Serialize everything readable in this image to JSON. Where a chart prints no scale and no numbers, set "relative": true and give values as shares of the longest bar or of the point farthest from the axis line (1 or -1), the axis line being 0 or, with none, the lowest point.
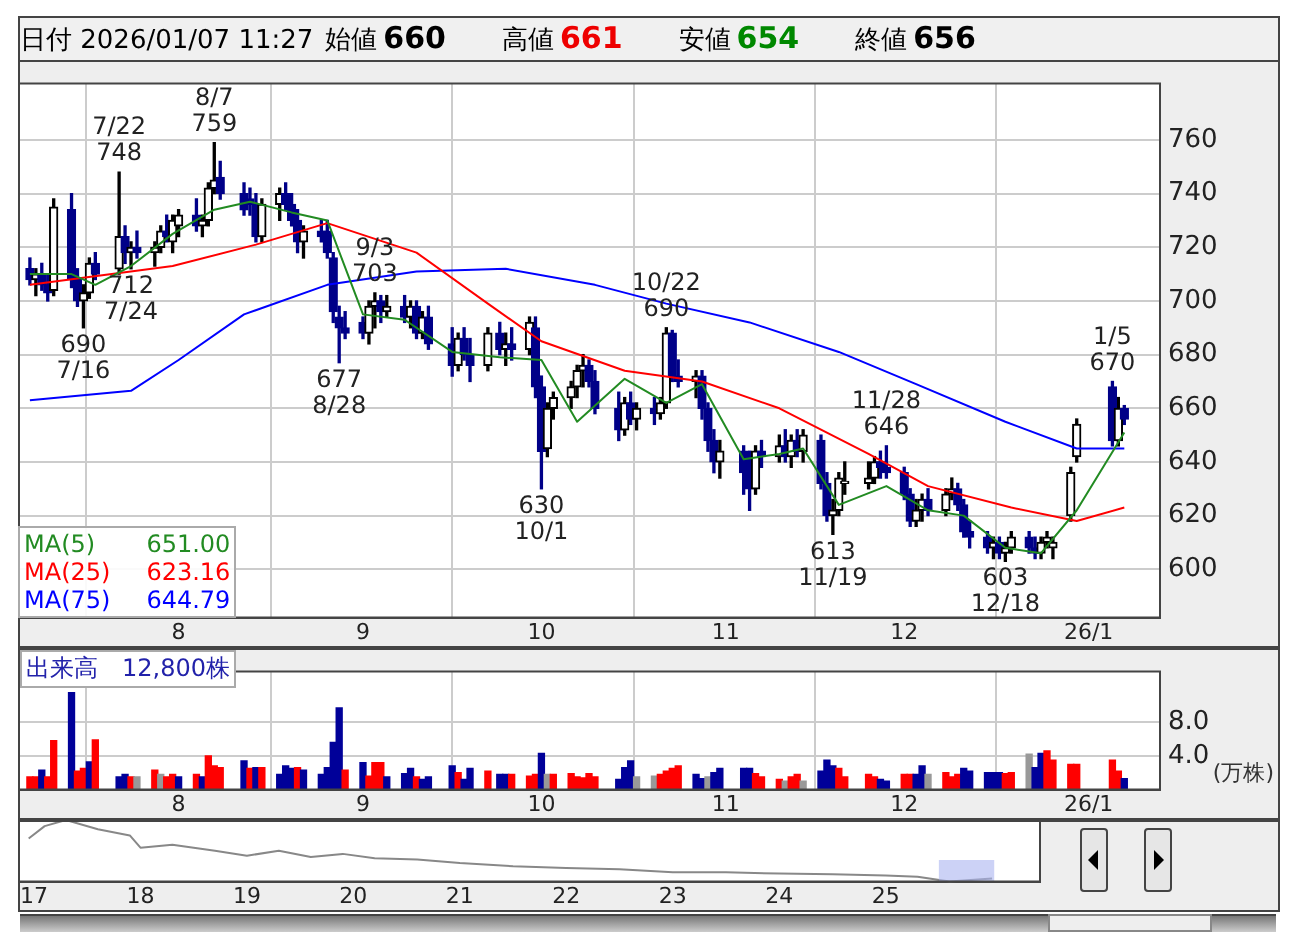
{
  "chart_data": [
    {
      "type": "candlestick",
      "title": "日付 2026/01/07 11:27",
      "subtitle": "始値 660 高値 661 安値 654 終値 656",
      "x": [
        "2025-07-07",
        "2025-07-08",
        "2025-07-09",
        "2025-07-10",
        "2025-07-11",
        "2025-07-14",
        "2025-07-15",
        "2025-07-16",
        "2025-07-17",
        "2025-07-18",
        "2025-07-22",
        "2025-07-23",
        "2025-07-24",
        "2025-07-25",
        "2025-07-28",
        "2025-07-29",
        "2025-07-30",
        "2025-07-31",
        "2025-08-01",
        "2025-08-04",
        "2025-08-05",
        "2025-08-06",
        "2025-08-07",
        "2025-08-08",
        "2025-08-12",
        "2025-08-13",
        "2025-08-14",
        "2025-08-15",
        "2025-08-18",
        "2025-08-19",
        "2025-08-20",
        "2025-08-21",
        "2025-08-22",
        "2025-08-25",
        "2025-08-26",
        "2025-08-27",
        "2025-08-28",
        "2025-08-29",
        "2025-09-01",
        "2025-09-02",
        "2025-09-03",
        "2025-09-04",
        "2025-09-05",
        "2025-09-08",
        "2025-09-09",
        "2025-09-10",
        "2025-09-11",
        "2025-09-12",
        "2025-09-16",
        "2025-09-17",
        "2025-09-18",
        "2025-09-19",
        "2025-09-22",
        "2025-09-24",
        "2025-09-25",
        "2025-09-26",
        "2025-09-29",
        "2025-09-30",
        "2025-10-01",
        "2025-10-02",
        "2025-10-03",
        "2025-10-06",
        "2025-10-07",
        "2025-10-08",
        "2025-10-09",
        "2025-10-10",
        "2025-10-14",
        "2025-10-15",
        "2025-10-16",
        "2025-10-17",
        "2025-10-20",
        "2025-10-21",
        "2025-10-22",
        "2025-10-23",
        "2025-10-24",
        "2025-10-27",
        "2025-10-28",
        "2025-10-29",
        "2025-10-30",
        "2025-10-31",
        "2025-11-04",
        "2025-11-05",
        "2025-11-06",
        "2025-11-07",
        "2025-11-10",
        "2025-11-11",
        "2025-11-12",
        "2025-11-13",
        "2025-11-14",
        "2025-11-17",
        "2025-11-18",
        "2025-11-19",
        "2025-11-20",
        "2025-11-21",
        "2025-11-25",
        "2025-11-26",
        "2025-11-27",
        "2025-11-28",
        "2025-12-01",
        "2025-12-02",
        "2025-12-03",
        "2025-12-04",
        "2025-12-05",
        "2025-12-08",
        "2025-12-09",
        "2025-12-10",
        "2025-12-11",
        "2025-12-12",
        "2025-12-15",
        "2025-12-16",
        "2025-12-17",
        "2025-12-18",
        "2025-12-19",
        "2025-12-22",
        "2025-12-23",
        "2025-12-24",
        "2025-12-25",
        "2025-12-26",
        "2025-12-29",
        "2025-12-30",
        "2026-01-05",
        "2026-01-06",
        "2026-01-07"
      ],
      "ohlc": [
        [
          712,
          716,
          706,
          708
        ],
        [
          708,
          712,
          702,
          710
        ],
        [
          710,
          714,
          704,
          706
        ],
        [
          706,
          710,
          700,
          703
        ],
        [
          704,
          738,
          702,
          735
        ],
        [
          734,
          740,
          705,
          708
        ],
        [
          708,
          712,
          698,
          700
        ],
        [
          700,
          706,
          690,
          703
        ],
        [
          703,
          716,
          701,
          714
        ],
        [
          714,
          718,
          708,
          710
        ],
        [
          712,
          748,
          710,
          724
        ],
        [
          724,
          728,
          714,
          718
        ],
        [
          718,
          722,
          712,
          720
        ],
        [
          720,
          726,
          716,
          718
        ],
        [
          718,
          722,
          713,
          720
        ],
        [
          720,
          728,
          718,
          726
        ],
        [
          726,
          732,
          722,
          724
        ],
        [
          722,
          732,
          718,
          730
        ],
        [
          728,
          734,
          724,
          732
        ],
        [
          732,
          738,
          726,
          728
        ],
        [
          728,
          732,
          724,
          730
        ],
        [
          730,
          744,
          728,
          742
        ],
        [
          742,
          759,
          740,
          745
        ],
        [
          746,
          752,
          738,
          740
        ],
        [
          740,
          744,
          732,
          734
        ],
        [
          738,
          742,
          732,
          736
        ],
        [
          736,
          740,
          722,
          724
        ],
        [
          724,
          738,
          722,
          736
        ],
        [
          736,
          742,
          730,
          740
        ],
        [
          740,
          744,
          734,
          736
        ],
        [
          736,
          740,
          728,
          730
        ],
        [
          730,
          734,
          718,
          722
        ],
        [
          722,
          728,
          716,
          726
        ],
        [
          726,
          730,
          722,
          724
        ],
        [
          726,
          730,
          716,
          718
        ],
        [
          716,
          718,
          692,
          696
        ],
        [
          694,
          698,
          677,
          690
        ],
        [
          690,
          696,
          686,
          688
        ],
        [
          692,
          694,
          686,
          688
        ],
        [
          688,
          700,
          684,
          698
        ],
        [
          698,
          703,
          690,
          700
        ],
        [
          700,
          702,
          692,
          696
        ],
        [
          696,
          702,
          694,
          698
        ],
        [
          698,
          702,
          692,
          694
        ],
        [
          694,
          700,
          690,
          698
        ],
        [
          698,
          700,
          686,
          688
        ],
        [
          688,
          696,
          686,
          694
        ],
        [
          694,
          698,
          682,
          684
        ],
        [
          684,
          690,
          672,
          676
        ],
        [
          676,
          688,
          674,
          686
        ],
        [
          686,
          690,
          678,
          680
        ],
        [
          680,
          686,
          670,
          676
        ],
        [
          676,
          690,
          674,
          688
        ],
        [
          688,
          692,
          680,
          682
        ],
        [
          682,
          688,
          676,
          684
        ],
        [
          684,
          690,
          678,
          682
        ],
        [
          682,
          694,
          680,
          692
        ],
        [
          690,
          694,
          664,
          668
        ],
        [
          668,
          672,
          630,
          644
        ],
        [
          645,
          662,
          642,
          660
        ],
        [
          660,
          666,
          656,
          664
        ],
        [
          664,
          670,
          660,
          668
        ],
        [
          668,
          676,
          664,
          674
        ],
        [
          674,
          680,
          668,
          676
        ],
        [
          676,
          678,
          668,
          670
        ],
        [
          670,
          674,
          658,
          660
        ],
        [
          660,
          666,
          648,
          652
        ],
        [
          652,
          664,
          650,
          662
        ],
        [
          662,
          666,
          654,
          656
        ],
        [
          656,
          662,
          652,
          660
        ],
        [
          660,
          664,
          654,
          658
        ],
        [
          658,
          664,
          656,
          662
        ],
        [
          662,
          690,
          660,
          688
        ],
        [
          688,
          689,
          670,
          672
        ],
        [
          672,
          678,
          668,
          670
        ],
        [
          670,
          674,
          664,
          672
        ],
        [
          672,
          674,
          656,
          660
        ],
        [
          660,
          662,
          644,
          648
        ],
        [
          648,
          652,
          636,
          640
        ],
        [
          640,
          648,
          634,
          644
        ],
        [
          644,
          646,
          628,
          636
        ],
        [
          636,
          644,
          622,
          630
        ],
        [
          630,
          646,
          628,
          644
        ],
        [
          644,
          648,
          638,
          642
        ],
        [
          642,
          650,
          640,
          646
        ],
        [
          646,
          652,
          640,
          642
        ],
        [
          642,
          650,
          638,
          648
        ],
        [
          648,
          652,
          642,
          644
        ],
        [
          644,
          652,
          640,
          650
        ],
        [
          648,
          650,
          630,
          632
        ],
        [
          632,
          636,
          618,
          620
        ],
        [
          620,
          626,
          613,
          622
        ],
        [
          622,
          636,
          620,
          634
        ],
        [
          632,
          640,
          628,
          632
        ],
        [
          632,
          640,
          630,
          634
        ],
        [
          634,
          642,
          632,
          640
        ],
        [
          640,
          644,
          634,
          638
        ],
        [
          638,
          646,
          634,
          636
        ],
        [
          636,
          638,
          626,
          628
        ],
        [
          628,
          630,
          616,
          618
        ],
        [
          618,
          626,
          616,
          622
        ],
        [
          622,
          628,
          618,
          626
        ],
        [
          626,
          630,
          620,
          622
        ],
        [
          622,
          630,
          620,
          628
        ],
        [
          628,
          634,
          626,
          630
        ],
        [
          630,
          632,
          622,
          624
        ],
        [
          624,
          626,
          612,
          614
        ],
        [
          614,
          618,
          608,
          612
        ],
        [
          612,
          614,
          606,
          608
        ],
        [
          608,
          612,
          604,
          610
        ],
        [
          610,
          612,
          604,
          606
        ],
        [
          606,
          610,
          603,
          608
        ],
        [
          608,
          614,
          606,
          612
        ],
        [
          612,
          614,
          606,
          608
        ],
        [
          608,
          612,
          604,
          606
        ],
        [
          606,
          612,
          604,
          610
        ],
        [
          610,
          614,
          608,
          612
        ],
        [
          608,
          612,
          604,
          610
        ],
        [
          620,
          638,
          618,
          636
        ],
        [
          642,
          656,
          640,
          654
        ],
        [
          668,
          670,
          646,
          648
        ],
        [
          648,
          664,
          646,
          660
        ],
        [
          660,
          661,
          654,
          656
        ]
      ],
      "series": [
        {
          "name": "MA(5)",
          "type": "line",
          "color": "#228b22",
          "x": [
            "2025-07-07",
            "2025-07-14",
            "2025-07-18",
            "2025-07-24",
            "2025-07-31",
            "2025-08-07",
            "2025-08-13",
            "2025-08-20",
            "2025-08-26",
            "2025-09-01",
            "2025-09-08",
            "2025-09-16",
            "2025-09-24",
            "2025-10-01",
            "2025-10-07",
            "2025-10-15",
            "2025-10-22",
            "2025-10-28",
            "2025-11-04",
            "2025-11-10",
            "2025-11-14",
            "2025-11-20",
            "2025-11-28",
            "2025-12-05",
            "2025-12-11",
            "2025-12-18",
            "2025-12-24",
            "2025-12-30",
            "2026-01-07"
          ],
          "values": [
            710,
            710,
            706,
            713,
            725,
            734,
            737,
            733,
            730,
            695,
            693,
            681,
            679,
            678,
            655,
            671,
            662,
            669,
            641,
            643,
            645,
            624,
            631,
            622,
            620,
            608,
            606,
            622,
            651
          ]
        },
        {
          "name": "MA(25)",
          "type": "line",
          "color": "#ff0000",
          "x": [
            "2025-07-07",
            "2025-07-31",
            "2025-08-14",
            "2025-08-26",
            "2025-09-10",
            "2025-09-22",
            "2025-10-01",
            "2025-10-15",
            "2025-10-28",
            "2025-11-10",
            "2025-11-25",
            "2025-12-05",
            "2025-12-19",
            "2025-12-30",
            "2026-01-07"
          ],
          "values": [
            706,
            713,
            721,
            729,
            718,
            699,
            685,
            674,
            670,
            660,
            643,
            631,
            623,
            618,
            623
          ]
        },
        {
          "name": "MA(75)",
          "type": "line",
          "color": "#0000ff",
          "x": [
            "2025-07-07",
            "2025-07-24",
            "2025-08-01",
            "2025-08-12",
            "2025-08-26",
            "2025-09-10",
            "2025-09-25",
            "2025-10-10",
            "2025-10-22",
            "2025-11-05",
            "2025-11-20",
            "2025-12-03",
            "2025-12-18",
            "2025-12-30",
            "2026-01-07"
          ],
          "values": [
            663,
            666.5,
            678,
            695,
            706,
            711,
            712,
            706,
            699,
            692,
            681,
            669,
            655,
            645,
            645
          ]
        }
      ],
      "annotations": [
        "651.00",
        "623.16",
        "644.79",
        {
          "text": "7/22\n748",
          "x": "2025-07-22",
          "y": 748
        },
        {
          "text": "8/7\n759",
          "x": "2025-08-07",
          "y": 759
        },
        {
          "text": "9/3\n703",
          "x": "2025-09-03",
          "y": 703
        },
        {
          "text": "10/22\n690",
          "x": "2025-10-22",
          "y": 690
        },
        {
          "text": "11/28\n646",
          "x": "2025-11-28",
          "y": 646
        },
        {
          "text": "1/5\n670",
          "x": "2026-01-05",
          "y": 670
        },
        {
          "text": "690\n7/16",
          "x": "2025-07-16",
          "y": 690
        },
        {
          "text": "712\n7/24",
          "x": "2025-07-24",
          "y": 712
        },
        {
          "text": "677\n8/28",
          "x": "2025-08-28",
          "y": 677
        },
        {
          "text": "630\n10/1",
          "x": "2025-10-01",
          "y": 630
        },
        {
          "text": "613\n11/19",
          "x": "2025-11-19",
          "y": 613
        },
        {
          "text": "603\n12/18",
          "x": "2025-12-18",
          "y": 603
        }
      ],
      "xlim": [
        "2025-07-05",
        "2026-01-13"
      ],
      "xticks": [
        {
          "value": "2025-08-01",
          "label": "8"
        },
        {
          "value": "2025-09-01",
          "label": "9"
        },
        {
          "value": "2025-10-01",
          "label": "10"
        },
        {
          "value": "2025-11-01",
          "label": "11"
        },
        {
          "value": "2025-12-01",
          "label": "12"
        },
        {
          "value": "2026-01-01",
          "label": "26/1"
        }
      ],
      "ylim": [
        582,
        781
      ],
      "yticks": [
        600,
        620,
        640,
        660,
        680,
        700,
        720,
        740,
        760
      ],
      "grid": true,
      "legend": "bottom left",
      "marker": "none"
    },
    {
      "type": "bar",
      "title": "出来高　12,800株",
      "ylabel": "(万株)",
      "x": [
        "2025-07-07",
        "2025-07-08",
        "2025-07-09",
        "2025-07-10",
        "2025-07-11",
        "2025-07-14",
        "2025-07-15",
        "2025-07-16",
        "2025-07-17",
        "2025-07-18",
        "2025-07-22",
        "2025-07-23",
        "2025-07-24",
        "2025-07-25",
        "2025-07-28",
        "2025-07-29",
        "2025-07-30",
        "2025-07-31",
        "2025-08-01",
        "2025-08-04",
        "2025-08-05",
        "2025-08-06",
        "2025-08-07",
        "2025-08-08",
        "2025-08-12",
        "2025-08-13",
        "2025-08-14",
        "2025-08-15",
        "2025-08-18",
        "2025-08-19",
        "2025-08-20",
        "2025-08-21",
        "2025-08-22",
        "2025-08-25",
        "2025-08-26",
        "2025-08-27",
        "2025-08-28",
        "2025-08-29",
        "2025-09-01",
        "2025-09-02",
        "2025-09-03",
        "2025-09-04",
        "2025-09-05",
        "2025-09-08",
        "2025-09-09",
        "2025-09-10",
        "2025-09-11",
        "2025-09-12",
        "2025-09-16",
        "2025-09-17",
        "2025-09-18",
        "2025-09-19",
        "2025-09-22",
        "2025-09-24",
        "2025-09-25",
        "2025-09-26",
        "2025-09-29",
        "2025-09-30",
        "2025-10-01",
        "2025-10-02",
        "2025-10-03",
        "2025-10-06",
        "2025-10-07",
        "2025-10-08",
        "2025-10-09",
        "2025-10-10",
        "2025-10-14",
        "2025-10-15",
        "2025-10-16",
        "2025-10-17",
        "2025-10-20",
        "2025-10-21",
        "2025-10-22",
        "2025-10-23",
        "2025-10-24",
        "2025-10-27",
        "2025-10-28",
        "2025-10-29",
        "2025-10-30",
        "2025-10-31",
        "2025-11-04",
        "2025-11-05",
        "2025-11-06",
        "2025-11-07",
        "2025-11-10",
        "2025-11-11",
        "2025-11-12",
        "2025-11-13",
        "2025-11-14",
        "2025-11-17",
        "2025-11-18",
        "2025-11-19",
        "2025-11-20",
        "2025-11-21",
        "2025-11-25",
        "2025-11-26",
        "2025-11-27",
        "2025-11-28",
        "2025-12-01",
        "2025-12-02",
        "2025-12-03",
        "2025-12-04",
        "2025-12-05",
        "2025-12-08",
        "2025-12-09",
        "2025-12-10",
        "2025-12-11",
        "2025-12-12",
        "2025-12-15",
        "2025-12-16",
        "2025-12-17",
        "2025-12-18",
        "2025-12-19",
        "2025-12-22",
        "2025-12-23",
        "2025-12-24",
        "2025-12-25",
        "2025-12-26",
        "2025-12-29",
        "2025-12-30",
        "2026-01-05",
        "2026-01-06",
        "2026-01-07"
      ],
      "values": [
        1.5,
        1.5,
        2.3,
        1.5,
        5.8,
        11.5,
        2.2,
        2.5,
        3.3,
        5.9,
        1.5,
        1.8,
        1.5,
        1.5,
        2.3,
        1.8,
        1.5,
        1.8,
        1.5,
        1.8,
        1.5,
        4.0,
        2.8,
        2.6,
        3.4,
        2.5,
        2.6,
        2.6,
        1.8,
        2.8,
        2.5,
        2.6,
        2.3,
        1.8,
        2.6,
        5.6,
        9.7,
        2.3,
        3.2,
        1.6,
        3.2,
        3.2,
        1.5,
        1.9,
        2.5,
        1.5,
        1.2,
        1.5,
        2.8,
        2.0,
        1.2,
        2.5,
        2.2,
        1.8,
        1.8,
        1.8,
        1.6,
        1.8,
        4.3,
        1.8,
        1.8,
        1.9,
        1.5,
        1.4,
        1.9,
        1.5,
        1.2,
        2.6,
        3.4,
        1.5,
        1.6,
        1.8,
        2.2,
        2.5,
        2.8,
        1.8,
        1.3,
        1.5,
        2.0,
        2.5,
        2.5,
        2.5,
        1.9,
        1.5,
        1.2,
        1.0,
        1.5,
        1.8,
        1.0,
        2.2,
        3.5,
        2.8,
        2.5,
        1.5,
        1.8,
        1.5,
        1.2,
        1.0,
        1.8,
        1.8,
        1.8,
        2.8,
        1.8,
        2.0,
        1.5,
        1.8,
        2.5,
        2.2,
        2.0,
        2.0,
        2.0,
        1.9,
        2.0,
        4.2,
        2.6,
        4.3,
        4.6,
        3.5,
        3.0,
        3.0,
        3.5,
        2.2,
        1.3
      ],
      "colors": [
        "#ff0000",
        "#ff0000",
        "#000099",
        "#ff0000",
        "#ff0000",
        "#000099",
        "#ff0000",
        "#ff0000",
        "#000099",
        "#ff0000",
        "#000099",
        "#000099",
        "#ff0000",
        "#999999",
        "#ff0000",
        "#999999",
        "#ff0000",
        "#ff0000",
        "#000099",
        "#ff0000",
        "#000099",
        "#ff0000",
        "#ff0000",
        "#ff0000",
        "#000099",
        "#ff0000",
        "#000099",
        "#ff0000",
        "#000099",
        "#000099",
        "#000099",
        "#ff0000",
        "#000099",
        "#000099",
        "#000099",
        "#000099",
        "#000099",
        "#ff0000",
        "#000099",
        "#ff0000",
        "#ff0000",
        "#ff0000",
        "#000099",
        "#000099",
        "#000099",
        "#ff0000",
        "#000099",
        "#000099",
        "#000099",
        "#ff0000",
        "#000099",
        "#000099",
        "#ff0000",
        "#000099",
        "#000099",
        "#ff0000",
        "#ff0000",
        "#ff0000",
        "#000099",
        "#999999",
        "#ff0000",
        "#ff0000",
        "#ff0000",
        "#ff0000",
        "#ff0000",
        "#ff0000",
        "#000099",
        "#000099",
        "#000099",
        "#999999",
        "#999999",
        "#ff0000",
        "#ff0000",
        "#ff0000",
        "#ff0000",
        "#000099",
        "#000099",
        "#999999",
        "#000099",
        "#000099",
        "#000099",
        "#000099",
        "#ff0000",
        "#ff0000",
        "#ff0000",
        "#999999",
        "#ff0000",
        "#ff0000",
        "#999999",
        "#000099",
        "#000099",
        "#000099",
        "#ff0000",
        "#ff0000",
        "#ff0000",
        "#ff0000",
        "#000099",
        "#000099",
        "#ff0000",
        "#ff0000",
        "#000099",
        "#000099",
        "#999999",
        "#ff0000",
        "#ff0000",
        "#ff0000",
        "#000099",
        "#000099",
        "#000099",
        "#000099",
        "#000099",
        "#ff0000",
        "#ff0000",
        "#999999",
        "#000099",
        "#000099",
        "#ff0000",
        "#ff0000",
        "#ff0000",
        "#ff0000",
        "#ff0000",
        "#ff0000",
        "#000099"
      ],
      "xlim": [
        "2025-07-05",
        "2026-01-13"
      ],
      "xticks": [
        {
          "value": "2025-08-01",
          "label": "8"
        },
        {
          "value": "2025-09-01",
          "label": "9"
        },
        {
          "value": "2025-10-01",
          "label": "10"
        },
        {
          "value": "2025-11-01",
          "label": "11"
        },
        {
          "value": "2025-12-01",
          "label": "12"
        },
        {
          "value": "2026-01-01",
          "label": "26/1"
        }
      ],
      "ylim": [
        0,
        14
      ],
      "yticks": [
        {
          "value": 4,
          "label": "4.0"
        },
        {
          "value": 8,
          "label": "8.0"
        }
      ],
      "grid": true
    },
    {
      "type": "line",
      "relative": true,
      "color": "#888888",
      "x": [
        2016.95,
        2017.1,
        2017.3,
        2017.6,
        2017.9,
        2018.0,
        2018.3,
        2018.7,
        2019.0,
        2019.3,
        2019.6,
        2019.9,
        2020.2,
        2020.6,
        2021.0,
        2021.5,
        2022.0,
        2022.5,
        2023.0,
        2023.5,
        2024.0,
        2024.5,
        2025.0,
        2025.3,
        2025.6,
        2026.0
      ],
      "values": [
        0.7,
        0.9,
        1.0,
        0.85,
        0.75,
        0.55,
        0.6,
        0.5,
        0.42,
        0.5,
        0.4,
        0.45,
        0.38,
        0.36,
        0.3,
        0.25,
        0.22,
        0.2,
        0.15,
        0.15,
        0.13,
        0.12,
        0.1,
        0.08,
        0.0,
        0.05
      ],
      "xlim": [
        2016.85,
        2026.45
      ],
      "xticks": [
        {
          "value": 2017,
          "label": "17"
        },
        {
          "value": 2018,
          "label": "18"
        },
        {
          "value": 2019,
          "label": "19"
        },
        {
          "value": 2020,
          "label": "20"
        },
        {
          "value": 2021,
          "label": "21"
        },
        {
          "value": 2022,
          "label": "22"
        },
        {
          "value": 2023,
          "label": "23"
        },
        {
          "value": 2024,
          "label": "24"
        },
        {
          "value": 2025,
          "label": "25"
        }
      ],
      "bands": [
        {
          "axis": "x",
          "from": 2025.5,
          "to": 2026.02,
          "color": "#aab4f0"
        }
      ]
    }
  ]
}
